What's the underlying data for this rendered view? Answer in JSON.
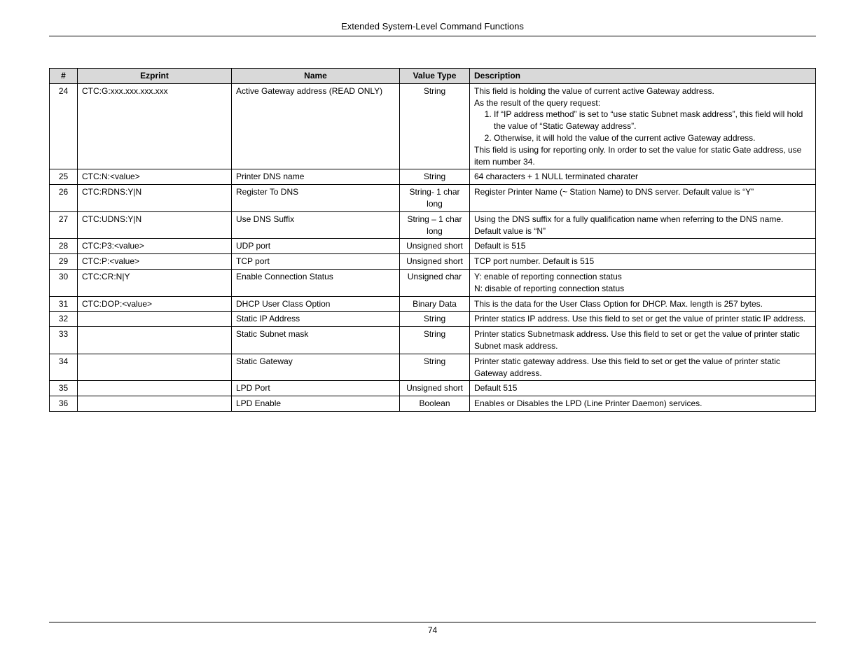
{
  "header": {
    "title": "Extended System-Level Command Functions"
  },
  "table": {
    "columns": {
      "num": "#",
      "ezprint": "Ezprint",
      "name": "Name",
      "value_type": "Value Type",
      "description": "Description"
    },
    "rows": [
      {
        "num": "24",
        "ezprint": "CTC:G:xxx.xxx.xxx.xxx",
        "name": "Active Gateway address (READ ONLY)",
        "value_type": "String",
        "desc_pre": "This field is holding the value of current active Gateway address.\nAs the result of the query request:",
        "desc_items": [
          "If “IP address method” is set to “use static Subnet mask address”, this field will hold the value of “Static Gateway address”.",
          "Otherwise, it will hold the value of the current active Gateway address."
        ],
        "desc_post": "This field is using for reporting only.  In order to set the value for static Gate address, use item number 34."
      },
      {
        "num": "25",
        "ezprint": "CTC:N:<value>",
        "name": "Printer DNS name",
        "value_type": "String",
        "desc_plain": "64 characters + 1 NULL terminated charater"
      },
      {
        "num": "26",
        "ezprint": "CTC:RDNS:Y|N",
        "name": "Register To DNS",
        "value_type": "String- 1 char long",
        "desc_plain": "Register Printer Name (~ Station Name) to DNS server.  Default value is “Y”"
      },
      {
        "num": "27",
        "ezprint": "CTC:UDNS:Y|N",
        "name": "Use DNS Suffix",
        "value_type": "String – 1 char long",
        "desc_plain": "Using the DNS suffix for a fully qualification name when referring to the DNS name.  Default value is “N”"
      },
      {
        "num": "28",
        "ezprint": "CTC:P3:<value>",
        "name": "UDP port",
        "value_type": "Unsigned short",
        "desc_plain": "Default is 515"
      },
      {
        "num": "29",
        "ezprint": "CTC:P:<value>",
        "name": "TCP port",
        "value_type": "Unsigned short",
        "desc_plain": "TCP port number. Default is 515"
      },
      {
        "num": "30",
        "ezprint": "CTC:CR:N|Y",
        "name": "Enable Connection Status",
        "value_type": "Unsigned char",
        "desc_plain": "Y: enable of reporting connection status\nN: disable of reporting connection status"
      },
      {
        "num": "31",
        "ezprint": "CTC:DOP:<value>",
        "name": "DHCP User Class Option",
        "value_type": "Binary Data",
        "desc_plain": "This is the data for the User Class Option for DHCP.  Max. length is 257 bytes."
      },
      {
        "num": "32",
        "ezprint": "",
        "name": "Static IP Address",
        "value_type": "String",
        "desc_plain": "Printer statics IP address.  Use this field to set or get the value of printer static IP address."
      },
      {
        "num": "33",
        "ezprint": "",
        "name": "Static Subnet mask",
        "value_type": "String",
        "desc_plain": "Printer statics Subnetmask address.  Use this field to set or get the value of printer static Subnet mask address."
      },
      {
        "num": "34",
        "ezprint": "",
        "name": "Static Gateway",
        "value_type": "String",
        "desc_plain": "Printer static gateway address.  Use this field to set or get the value of printer static Gateway address."
      },
      {
        "num": "35",
        "ezprint": "",
        "name": "LPD Port",
        "value_type": "Unsigned short",
        "desc_plain": "Default 515"
      },
      {
        "num": "36",
        "ezprint": "",
        "name": "LPD Enable",
        "value_type": "Boolean",
        "desc_plain": "Enables or Disables the LPD (Line Printer Daemon) services."
      }
    ]
  },
  "footer": {
    "page_number": "74"
  }
}
